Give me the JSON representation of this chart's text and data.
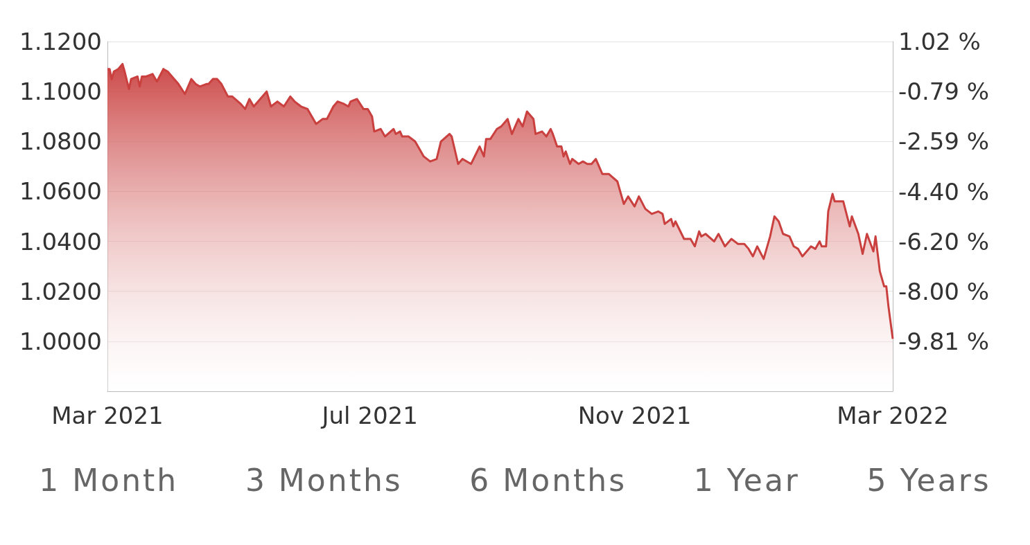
{
  "chart_data": {
    "type": "area",
    "x": [
      "2021-03-01",
      "2021-03-02",
      "2021-03-03",
      "2021-03-04",
      "2021-03-06",
      "2021-03-08",
      "2021-03-09",
      "2021-03-11",
      "2021-03-12",
      "2021-03-15",
      "2021-03-16",
      "2021-03-17",
      "2021-03-19",
      "2021-03-22",
      "2021-03-24",
      "2021-03-27",
      "2021-03-29",
      "2021-03-31",
      "2021-04-03",
      "2021-04-06",
      "2021-04-09",
      "2021-04-11",
      "2021-04-13",
      "2021-04-16",
      "2021-04-17",
      "2021-04-19",
      "2021-04-21",
      "2021-04-23",
      "2021-04-26",
      "2021-04-28",
      "2021-05-02",
      "2021-05-04",
      "2021-05-06",
      "2021-05-08",
      "2021-05-11",
      "2021-05-14",
      "2021-05-16",
      "2021-05-19",
      "2021-05-22",
      "2021-05-25",
      "2021-05-27",
      "2021-05-30",
      "2021-06-02",
      "2021-06-06",
      "2021-06-09",
      "2021-06-11",
      "2021-06-14",
      "2021-06-16",
      "2021-06-19",
      "2021-06-21",
      "2021-06-22",
      "2021-06-25",
      "2021-06-28",
      "2021-06-30",
      "2021-07-02",
      "2021-07-03",
      "2021-07-06",
      "2021-07-08",
      "2021-07-12",
      "2021-07-13",
      "2021-07-15",
      "2021-07-16",
      "2021-07-19",
      "2021-07-22",
      "2021-07-24",
      "2021-07-26",
      "2021-07-29",
      "2021-08-01",
      "2021-08-03",
      "2021-08-07",
      "2021-08-08",
      "2021-08-11",
      "2021-08-13",
      "2021-08-17",
      "2021-08-21",
      "2021-08-23",
      "2021-08-24",
      "2021-08-26",
      "2021-08-29",
      "2021-08-31",
      "2021-09-02",
      "2021-09-03",
      "2021-09-05",
      "2021-09-08",
      "2021-09-10",
      "2021-09-12",
      "2021-09-15",
      "2021-09-16",
      "2021-09-19",
      "2021-09-21",
      "2021-09-23",
      "2021-09-24",
      "2021-09-26",
      "2021-09-28",
      "2021-09-29",
      "2021-09-30",
      "2021-10-02",
      "2021-10-03",
      "2021-10-06",
      "2021-10-08",
      "2021-10-10",
      "2021-10-12",
      "2021-10-14",
      "2021-10-17",
      "2021-10-20",
      "2021-10-24",
      "2021-10-27",
      "2021-10-29",
      "2021-11-01",
      "2021-11-03",
      "2021-11-06",
      "2021-11-09",
      "2021-11-12",
      "2021-11-14",
      "2021-11-15",
      "2021-11-18",
      "2021-11-19",
      "2021-11-20",
      "2021-11-24",
      "2021-11-27",
      "2021-11-29",
      "2021-12-01",
      "2021-12-02",
      "2021-12-04",
      "2021-12-08",
      "2021-12-10",
      "2021-12-13",
      "2021-12-16",
      "2021-12-19",
      "2021-12-22",
      "2021-12-24",
      "2021-12-26",
      "2021-12-28",
      "2021-12-31",
      "2022-01-03",
      "2022-01-05",
      "2022-01-07",
      "2022-01-09",
      "2022-01-12",
      "2022-01-14",
      "2022-01-16",
      "2022-01-18",
      "2022-01-22",
      "2022-01-24",
      "2022-01-26",
      "2022-01-27",
      "2022-01-29",
      "2022-01-30",
      "2022-02-01",
      "2022-02-02",
      "2022-02-05",
      "2022-02-06",
      "2022-02-09",
      "2022-02-10",
      "2022-02-13",
      "2022-02-15",
      "2022-02-17",
      "2022-02-20",
      "2022-02-21",
      "2022-02-23",
      "2022-02-25",
      "2022-02-26",
      "2022-02-27",
      "2022-03-01"
    ],
    "series": [
      {
        "color": "#c9403f",
        "values": [
          1.109,
          1.109,
          1.105,
          1.108,
          1.109,
          1.111,
          1.108,
          1.101,
          1.105,
          1.106,
          1.102,
          1.106,
          1.106,
          1.107,
          1.104,
          1.109,
          1.108,
          1.106,
          1.103,
          1.099,
          1.105,
          1.103,
          1.102,
          1.103,
          1.103,
          1.105,
          1.105,
          1.103,
          1.098,
          1.098,
          1.095,
          1.093,
          1.097,
          1.094,
          1.097,
          1.1,
          1.094,
          1.096,
          1.094,
          1.098,
          1.096,
          1.094,
          1.093,
          1.087,
          1.089,
          1.089,
          1.094,
          1.096,
          1.095,
          1.094,
          1.096,
          1.097,
          1.093,
          1.093,
          1.09,
          1.084,
          1.085,
          1.082,
          1.085,
          1.083,
          1.084,
          1.082,
          1.082,
          1.08,
          1.077,
          1.074,
          1.072,
          1.073,
          1.08,
          1.083,
          1.082,
          1.071,
          1.073,
          1.071,
          1.078,
          1.074,
          1.081,
          1.081,
          1.085,
          1.086,
          1.088,
          1.089,
          1.083,
          1.089,
          1.086,
          1.092,
          1.089,
          1.083,
          1.084,
          1.082,
          1.085,
          1.083,
          1.078,
          1.078,
          1.074,
          1.076,
          1.071,
          1.073,
          1.071,
          1.072,
          1.071,
          1.071,
          1.073,
          1.067,
          1.067,
          1.064,
          1.055,
          1.058,
          1.054,
          1.058,
          1.053,
          1.051,
          1.052,
          1.051,
          1.047,
          1.049,
          1.046,
          1.048,
          1.041,
          1.041,
          1.038,
          1.044,
          1.042,
          1.043,
          1.04,
          1.043,
          1.038,
          1.041,
          1.039,
          1.039,
          1.037,
          1.034,
          1.038,
          1.033,
          1.042,
          1.05,
          1.048,
          1.043,
          1.042,
          1.038,
          1.037,
          1.034,
          1.038,
          1.037,
          1.04,
          1.038,
          1.038,
          1.052,
          1.059,
          1.056,
          1.056,
          1.056,
          1.046,
          1.05,
          1.043,
          1.035,
          1.043,
          1.036,
          1.042,
          1.028,
          1.022,
          1.022,
          1.014,
          1.001
        ]
      }
    ],
    "xlim": [
      "2021-03-01",
      "2022-03-01"
    ],
    "xticks": [
      {
        "value": "2021-03-01",
        "label": "Mar 2021"
      },
      {
        "value": "2021-07-01",
        "label": "Jul 2021"
      },
      {
        "value": "2021-11-01",
        "label": "Nov 2021"
      },
      {
        "value": "2022-03-01",
        "label": "Mar 2022"
      }
    ],
    "ylim": [
      0.98,
      1.12
    ],
    "yticks": [
      {
        "value": 1.0,
        "label": "1.0000"
      },
      {
        "value": 1.02,
        "label": "1.0200"
      },
      {
        "value": 1.04,
        "label": "1.0400"
      },
      {
        "value": 1.06,
        "label": "1.0600"
      },
      {
        "value": 1.08,
        "label": "1.0800"
      },
      {
        "value": 1.1,
        "label": "1.1000"
      },
      {
        "value": 1.12,
        "label": "1.1200"
      }
    ],
    "y2lim": [
      -11.6,
      1.02
    ],
    "y2ticks": [
      {
        "value": -9.81,
        "label": "-9.81 %"
      },
      {
        "value": -8.0,
        "label": "-8.00 %"
      },
      {
        "value": -6.2,
        "label": "-6.20 %"
      },
      {
        "value": -4.4,
        "label": "-4.40 %"
      },
      {
        "value": -2.59,
        "label": "-2.59 %"
      },
      {
        "value": -0.79,
        "label": "-0.79 %"
      },
      {
        "value": 1.02,
        "label": "1.02 %"
      }
    ],
    "grid": "y",
    "annotations": [
      "1 Month",
      "3 Months",
      "6 Months",
      "1 Year",
      "5 Years"
    ]
  }
}
